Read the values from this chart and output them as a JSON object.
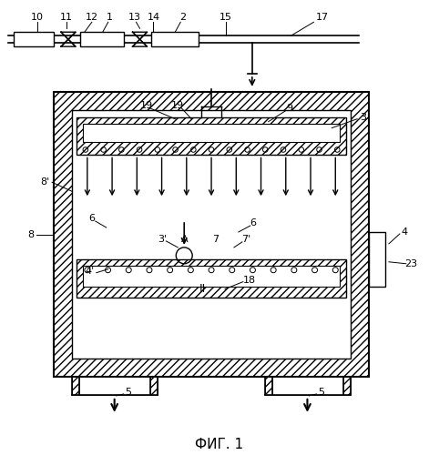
{
  "bg_color": "#ffffff",
  "line_color": "#000000",
  "fig_label": "ФИГ. 1"
}
